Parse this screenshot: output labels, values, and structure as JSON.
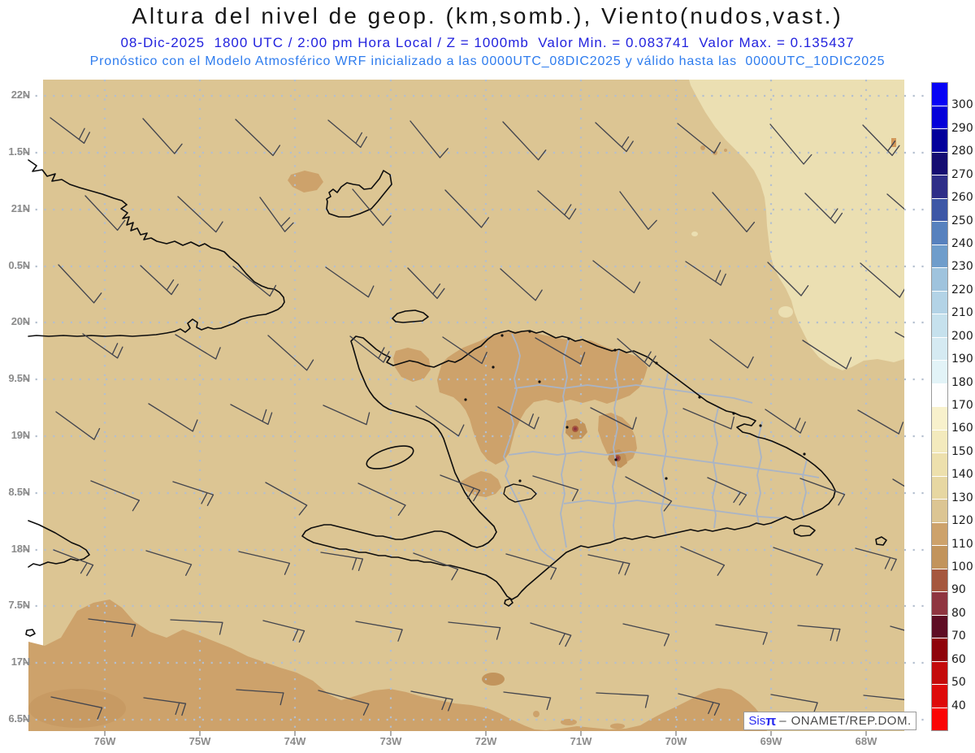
{
  "header": {
    "title": "Altura del nivel de geop. (km,somb.), Viento(nudos,vast.)",
    "subtitle_datetime": "08-Dic-2025  1800 UTC / 2:00 pm Hora Local / Z = 1000mb  Valor Min. = 0.083741  Valor Max. = 0.135437",
    "subtitle_model": "Pronóstico con el Modelo Atmosférico WRF inicializado a las 0000UTC_08DIC2025 y válido hasta las  0000UTC_10DIC2025"
  },
  "axes": {
    "lat_labels": [
      "22N",
      "1.5N",
      "21N",
      "0.5N",
      "20N",
      "9.5N",
      "19N",
      "8.5N",
      "18N",
      "7.5N",
      "17N",
      "6.5N"
    ],
    "lon_labels": [
      "76W",
      "75W",
      "74W",
      "73W",
      "72W",
      "71W",
      "70W",
      "69W",
      "68W"
    ]
  },
  "colorbar": {
    "values": [
      300,
      290,
      280,
      270,
      260,
      250,
      240,
      230,
      220,
      210,
      200,
      190,
      180,
      170,
      160,
      150,
      140,
      130,
      120,
      110,
      100,
      90,
      80,
      70,
      60,
      50,
      40
    ],
    "colors": [
      "#0703F5",
      "#0501D9",
      "#03009B",
      "#150D72",
      "#2E2E88",
      "#3D57A6",
      "#5781BE",
      "#6F9DCB",
      "#9FC3DD",
      "#B3D3E6",
      "#C6E1ED",
      "#D5EAF2",
      "#E2F3F7",
      "#FEFEFE",
      "#F8F1CC",
      "#F3EABD",
      "#EDE0AD",
      "#E7D7A2",
      "#DCC593",
      "#CDA26B",
      "#C2945C",
      "#A5573E",
      "#8F3540",
      "#5E0D24",
      "#8F040B",
      "#C40B0B",
      "#DE0B0B",
      "#FA0606"
    ]
  },
  "watermark": {
    "brand": "Sis",
    "pi": "π",
    "separator": "–",
    "org": "ONAMET/REP.DOM."
  },
  "map_colors": {
    "base": "#DCC593",
    "light": "#EBDFB2",
    "shade1": "#CDA26B",
    "shade2": "#C2945C",
    "low1": "#A5573E",
    "low2": "#8F3540",
    "grid": "#B3BFCF",
    "coast": "#0d0d0d",
    "border": "#A9B4C6",
    "barb": "#43454e"
  },
  "chart_data": {
    "type": "heatmap",
    "title": "Altura del nivel de geop. (km,somb.), Viento(nudos,vast.)",
    "valid_time": "08-Dic-2025 1800 UTC / 2:00 pm Hora Local",
    "level": "Z = 1000mb",
    "value_min": 0.083741,
    "value_max": 0.135437,
    "colorbar_ticks": [
      40,
      50,
      60,
      70,
      80,
      90,
      100,
      110,
      120,
      130,
      140,
      150,
      160,
      170,
      180,
      190,
      200,
      210,
      220,
      230,
      240,
      250,
      260,
      270,
      280,
      290,
      300
    ],
    "lat_ticks": [
      "22N",
      "1.5N",
      "21N",
      "0.5N",
      "20N",
      "9.5N",
      "19N",
      "8.5N",
      "18N",
      "7.5N",
      "17N",
      "6.5N"
    ],
    "lon_ticks": [
      "76W",
      "75W",
      "74W",
      "73W",
      "72W",
      "71W",
      "70W",
      "69W",
      "68W"
    ],
    "model": "WRF inicializado a las 0000UTC_08DIC2025, válido hasta las 0000UTC_10DIC2025",
    "legend_position": "right"
  }
}
